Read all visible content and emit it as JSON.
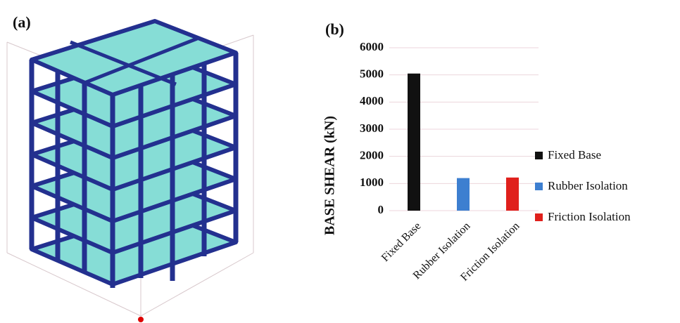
{
  "panel_labels": [
    "(a)",
    "(b)"
  ],
  "chart_data": {
    "type": "bar",
    "y_label": "BASE SHEAR (kN)",
    "categories": [
      "Fixed Base",
      "Rubber Isolation",
      "Friction Isolation"
    ],
    "values": [
      5050,
      1200,
      1220
    ],
    "colors": [
      "#111111",
      "#3d7fd0",
      "#e0201c"
    ],
    "ylim": [
      0,
      6000
    ],
    "yticks": [
      0,
      1000,
      2000,
      3000,
      4000,
      5000,
      6000
    ],
    "grid": true,
    "legend": "right"
  }
}
